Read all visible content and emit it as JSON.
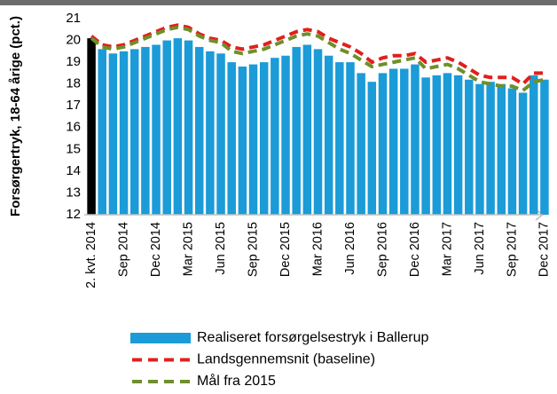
{
  "chart_data": {
    "type": "bar",
    "y_axis_label": "Forsørgertryk, 18-64 årige (pct.)",
    "categories": [
      "2. kvt. 2014",
      null,
      null,
      "Sep 2014",
      null,
      null,
      "Dec 2014",
      null,
      null,
      "Mar 2015",
      null,
      null,
      "Jun 2015",
      null,
      null,
      "Sep 2015",
      null,
      null,
      "Dec 2015",
      null,
      null,
      "Mar 2016",
      null,
      null,
      "Jun 2016",
      null,
      null,
      "Sep 2016",
      null,
      null,
      "Dec 2016",
      null,
      null,
      "Mar 2017",
      null,
      null,
      "Jun 2017",
      null,
      null,
      "Sep 2017",
      null,
      null,
      "Dec 2017"
    ],
    "series": [
      {
        "name": "Realiseret forsørgelsestryk i Ballerup",
        "type": "bar",
        "color": "#1b9bd7",
        "highlight": {
          "index": 0,
          "color": "#000000"
        },
        "values": [
          20.1,
          19.6,
          19.4,
          19.5,
          19.6,
          19.7,
          19.8,
          20.0,
          20.1,
          20.0,
          19.7,
          19.5,
          19.4,
          19.0,
          18.8,
          18.9,
          19.0,
          19.2,
          19.3,
          19.7,
          19.8,
          19.6,
          19.3,
          19.0,
          19.0,
          18.5,
          18.1,
          18.5,
          18.7,
          18.7,
          18.9,
          18.3,
          18.4,
          18.5,
          18.4,
          18.2,
          18.0,
          18.1,
          18.0,
          17.8,
          17.6,
          18.4,
          18.2
        ]
      },
      {
        "name": "Landsgennemsnit (baseline)",
        "type": "line",
        "color": "#e0201b",
        "values": [
          20.2,
          19.8,
          19.7,
          19.8,
          20.0,
          20.2,
          20.4,
          20.6,
          20.7,
          20.6,
          20.3,
          20.1,
          20.0,
          19.7,
          19.6,
          19.7,
          19.8,
          20.0,
          20.2,
          20.4,
          20.5,
          20.4,
          20.1,
          19.9,
          19.7,
          19.4,
          19.0,
          19.2,
          19.3,
          19.3,
          19.4,
          19.0,
          19.1,
          19.2,
          19.0,
          18.7,
          18.4,
          18.3,
          18.3,
          18.3,
          18.0,
          18.5,
          18.5
        ]
      },
      {
        "name": "Mål fra 2015",
        "type": "line",
        "color": "#6f8f2a",
        "values": [
          20.1,
          19.7,
          19.6,
          19.7,
          19.9,
          20.1,
          20.3,
          20.5,
          20.6,
          20.5,
          20.2,
          20.0,
          19.9,
          19.5,
          19.4,
          19.5,
          19.6,
          19.8,
          20.0,
          20.2,
          20.3,
          20.2,
          19.9,
          19.6,
          19.4,
          19.1,
          18.8,
          18.9,
          19.0,
          19.1,
          19.2,
          18.7,
          18.8,
          18.9,
          18.7,
          18.4,
          18.1,
          18.0,
          17.9,
          17.9,
          17.7,
          18.1,
          18.2
        ]
      }
    ],
    "ylim": [
      12,
      21
    ],
    "yticks": [
      12,
      13,
      14,
      15,
      16,
      17,
      18,
      19,
      20,
      21
    ],
    "grid": false
  }
}
